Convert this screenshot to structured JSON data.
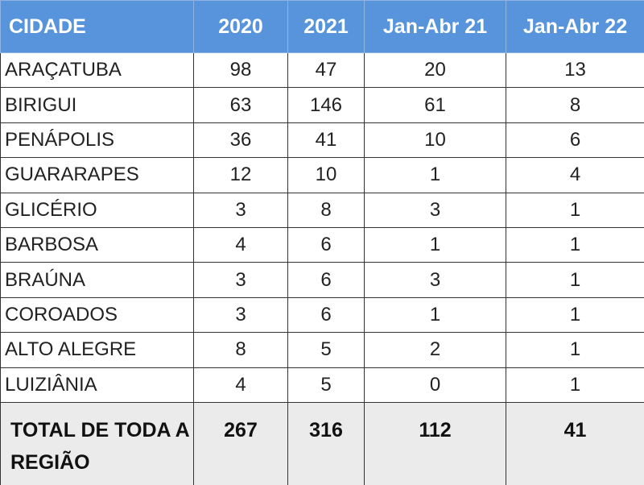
{
  "table": {
    "header": [
      "CIDADE",
      "2020",
      "2021",
      "Jan-Abr 21",
      "Jan-Abr 22"
    ],
    "rows": [
      [
        "ARAÇATUBA",
        98,
        47,
        20,
        13
      ],
      [
        "BIRIGUI",
        63,
        146,
        61,
        8
      ],
      [
        "PENÁPOLIS",
        36,
        41,
        10,
        6
      ],
      [
        "GUARARAPES",
        12,
        10,
        1,
        4
      ],
      [
        "GLICÉRIO",
        3,
        8,
        3,
        1
      ],
      [
        "BARBOSA",
        4,
        6,
        1,
        1
      ],
      [
        "BRAÚNA",
        3,
        6,
        3,
        1
      ],
      [
        "COROADOS",
        3,
        6,
        1,
        1
      ],
      [
        "ALTO ALEGRE",
        8,
        5,
        2,
        1
      ],
      [
        "LUIZIÂNIA",
        4,
        5,
        0,
        1
      ]
    ],
    "total": [
      "TOTAL DE TODA A REGIÃO",
      267,
      316,
      112,
      41
    ]
  }
}
